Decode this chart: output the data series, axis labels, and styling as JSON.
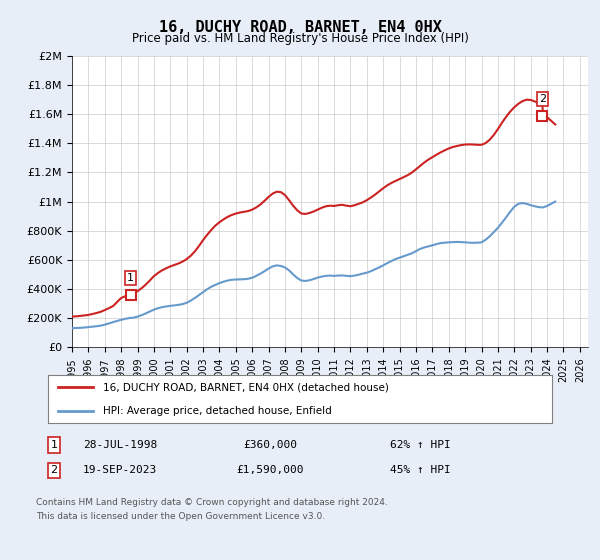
{
  "title": "16, DUCHY ROAD, BARNET, EN4 0HX",
  "subtitle": "Price paid vs. HM Land Registry's House Price Index (HPI)",
  "ylabel": "",
  "xlim": [
    1995.0,
    2026.5
  ],
  "ylim": [
    0,
    2000000
  ],
  "yticks": [
    0,
    200000,
    400000,
    600000,
    800000,
    1000000,
    1200000,
    1400000,
    1600000,
    1800000,
    2000000
  ],
  "ytick_labels": [
    "£0",
    "£200K",
    "£400K",
    "£600K",
    "£800K",
    "£1M",
    "£1.2M",
    "£1.4M",
    "£1.6M",
    "£1.8M",
    "£2M"
  ],
  "xticks": [
    1995,
    1996,
    1997,
    1998,
    1999,
    2000,
    2001,
    2002,
    2003,
    2004,
    2005,
    2006,
    2007,
    2008,
    2009,
    2010,
    2011,
    2012,
    2013,
    2014,
    2015,
    2016,
    2017,
    2018,
    2019,
    2020,
    2021,
    2022,
    2023,
    2024,
    2025,
    2026
  ],
  "hpi_color": "#6699cc",
  "price_color": "#cc2222",
  "bg_color": "#e8eef8",
  "plot_bg": "#ffffff",
  "grid_color": "#cccccc",
  "transaction1_date": "28-JUL-1998",
  "transaction1_price": "£360,000",
  "transaction1_hpi": "62% ↑ HPI",
  "transaction1_x": 1998.58,
  "transaction1_y": 360000,
  "transaction2_date": "19-SEP-2023",
  "transaction2_price": "£1,590,000",
  "transaction2_hpi": "45% ↑ HPI",
  "transaction2_x": 2023.72,
  "transaction2_y": 1590000,
  "legend_line1": "16, DUCHY ROAD, BARNET, EN4 0HX (detached house)",
  "legend_line2": "HPI: Average price, detached house, Enfield",
  "footer1": "Contains HM Land Registry data © Crown copyright and database right 2024.",
  "footer2": "This data is licensed under the Open Government Licence v3.0.",
  "hpi_x": [
    1995.0,
    1995.25,
    1995.5,
    1995.75,
    1996.0,
    1996.25,
    1996.5,
    1996.75,
    1997.0,
    1997.25,
    1997.5,
    1997.75,
    1998.0,
    1998.25,
    1998.5,
    1998.75,
    1999.0,
    1999.25,
    1999.5,
    1999.75,
    2000.0,
    2000.25,
    2000.5,
    2000.75,
    2001.0,
    2001.25,
    2001.5,
    2001.75,
    2002.0,
    2002.25,
    2002.5,
    2002.75,
    2003.0,
    2003.25,
    2003.5,
    2003.75,
    2004.0,
    2004.25,
    2004.5,
    2004.75,
    2005.0,
    2005.25,
    2005.5,
    2005.75,
    2006.0,
    2006.25,
    2006.5,
    2006.75,
    2007.0,
    2007.25,
    2007.5,
    2007.75,
    2008.0,
    2008.25,
    2008.5,
    2008.75,
    2009.0,
    2009.25,
    2009.5,
    2009.75,
    2010.0,
    2010.25,
    2010.5,
    2010.75,
    2011.0,
    2011.25,
    2011.5,
    2011.75,
    2012.0,
    2012.25,
    2012.5,
    2012.75,
    2013.0,
    2013.25,
    2013.5,
    2013.75,
    2014.0,
    2014.25,
    2014.5,
    2014.75,
    2015.0,
    2015.25,
    2015.5,
    2015.75,
    2016.0,
    2016.25,
    2016.5,
    2016.75,
    2017.0,
    2017.25,
    2017.5,
    2017.75,
    2018.0,
    2018.25,
    2018.5,
    2018.75,
    2019.0,
    2019.25,
    2019.5,
    2019.75,
    2020.0,
    2020.25,
    2020.5,
    2020.75,
    2021.0,
    2021.25,
    2021.5,
    2021.75,
    2022.0,
    2022.25,
    2022.5,
    2022.75,
    2023.0,
    2023.25,
    2023.5,
    2023.75,
    2024.0,
    2024.25,
    2024.5
  ],
  "hpi_y": [
    130000,
    132000,
    133000,
    135000,
    138000,
    141000,
    144000,
    148000,
    155000,
    163000,
    172000,
    180000,
    188000,
    195000,
    200000,
    203000,
    210000,
    220000,
    232000,
    245000,
    258000,
    268000,
    275000,
    280000,
    284000,
    287000,
    291000,
    296000,
    305000,
    320000,
    338000,
    358000,
    378000,
    398000,
    415000,
    428000,
    440000,
    450000,
    458000,
    463000,
    465000,
    466000,
    467000,
    470000,
    477000,
    490000,
    505000,
    522000,
    540000,
    555000,
    562000,
    558000,
    548000,
    528000,
    500000,
    475000,
    458000,
    455000,
    460000,
    468000,
    478000,
    485000,
    490000,
    492000,
    490000,
    492000,
    493000,
    490000,
    488000,
    492000,
    498000,
    505000,
    512000,
    522000,
    535000,
    548000,
    562000,
    578000,
    592000,
    605000,
    615000,
    625000,
    635000,
    645000,
    660000,
    675000,
    685000,
    692000,
    700000,
    708000,
    715000,
    718000,
    720000,
    722000,
    723000,
    722000,
    720000,
    718000,
    717000,
    718000,
    720000,
    738000,
    762000,
    790000,
    820000,
    855000,
    892000,
    930000,
    965000,
    985000,
    990000,
    985000,
    975000,
    968000,
    962000,
    960000,
    970000,
    985000,
    1000000
  ],
  "price_x": [
    1995.0,
    1995.25,
    1995.5,
    1995.75,
    1996.0,
    1996.25,
    1996.5,
    1996.75,
    1997.0,
    1997.25,
    1997.5,
    1997.75,
    1998.0,
    1998.25,
    1998.5,
    1998.58,
    1998.75,
    1999.0,
    1999.25,
    1999.5,
    1999.75,
    2000.0,
    2000.25,
    2000.5,
    2000.75,
    2001.0,
    2001.25,
    2001.5,
    2001.75,
    2002.0,
    2002.25,
    2002.5,
    2002.75,
    2003.0,
    2003.25,
    2003.5,
    2003.75,
    2004.0,
    2004.25,
    2004.5,
    2004.75,
    2005.0,
    2005.25,
    2005.5,
    2005.75,
    2006.0,
    2006.25,
    2006.5,
    2006.75,
    2007.0,
    2007.25,
    2007.5,
    2007.75,
    2008.0,
    2008.25,
    2008.5,
    2008.75,
    2009.0,
    2009.25,
    2009.5,
    2009.75,
    2010.0,
    2010.25,
    2010.5,
    2010.75,
    2011.0,
    2011.25,
    2011.5,
    2011.75,
    2012.0,
    2012.25,
    2012.5,
    2012.75,
    2013.0,
    2013.25,
    2013.5,
    2013.75,
    2014.0,
    2014.25,
    2014.5,
    2014.75,
    2015.0,
    2015.25,
    2015.5,
    2015.75,
    2016.0,
    2016.25,
    2016.5,
    2016.75,
    2017.0,
    2017.25,
    2017.5,
    2017.75,
    2018.0,
    2018.25,
    2018.5,
    2018.75,
    2019.0,
    2019.25,
    2019.5,
    2019.75,
    2020.0,
    2020.25,
    2020.5,
    2020.75,
    2021.0,
    2021.25,
    2021.5,
    2021.75,
    2022.0,
    2022.25,
    2022.5,
    2022.75,
    2023.0,
    2023.25,
    2023.5,
    2023.72,
    2023.75,
    2024.0,
    2024.25,
    2024.5
  ],
  "price_y": [
    210000,
    212000,
    215000,
    218000,
    222000,
    228000,
    235000,
    243000,
    255000,
    268000,
    282000,
    310000,
    338000,
    350000,
    358000,
    360000,
    370000,
    385000,
    405000,
    430000,
    458000,
    488000,
    510000,
    528000,
    542000,
    555000,
    565000,
    575000,
    588000,
    605000,
    628000,
    658000,
    695000,
    735000,
    772000,
    805000,
    835000,
    858000,
    878000,
    895000,
    908000,
    918000,
    925000,
    930000,
    935000,
    945000,
    960000,
    980000,
    1005000,
    1032000,
    1055000,
    1068000,
    1065000,
    1045000,
    1010000,
    972000,
    940000,
    918000,
    915000,
    922000,
    932000,
    945000,
    958000,
    968000,
    972000,
    970000,
    975000,
    978000,
    972000,
    968000,
    975000,
    985000,
    995000,
    1010000,
    1028000,
    1048000,
    1070000,
    1092000,
    1112000,
    1128000,
    1142000,
    1155000,
    1168000,
    1182000,
    1200000,
    1222000,
    1245000,
    1268000,
    1288000,
    1305000,
    1322000,
    1338000,
    1352000,
    1365000,
    1375000,
    1382000,
    1388000,
    1392000,
    1393000,
    1392000,
    1390000,
    1390000,
    1402000,
    1425000,
    1458000,
    1498000,
    1542000,
    1582000,
    1618000,
    1648000,
    1672000,
    1690000,
    1700000,
    1698000,
    1688000,
    1675000,
    1660000,
    1590000,
    1580000,
    1555000,
    1530000
  ]
}
